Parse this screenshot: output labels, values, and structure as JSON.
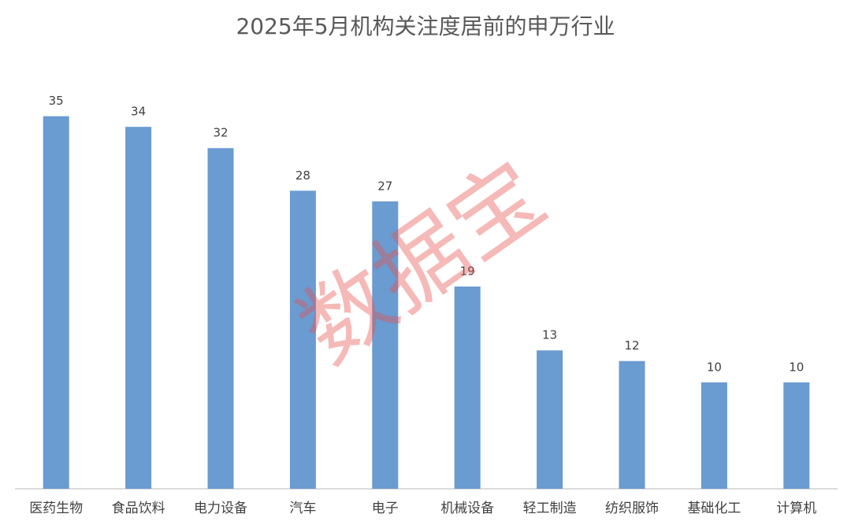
{
  "chart_data": {
    "type": "bar",
    "title": "2025年5月机构关注度居前的申万行业",
    "categories": [
      "医药生物",
      "食品饮料",
      "电力设备",
      "汽车",
      "电子",
      "机械设备",
      "轻工制造",
      "纺织服饰",
      "基础化工",
      "计算机"
    ],
    "values": [
      35,
      34,
      32,
      28,
      27,
      19,
      13,
      12,
      10,
      10
    ],
    "color": "#6a9bd1",
    "ylim": [
      0,
      40
    ],
    "watermark": "数据宝"
  }
}
